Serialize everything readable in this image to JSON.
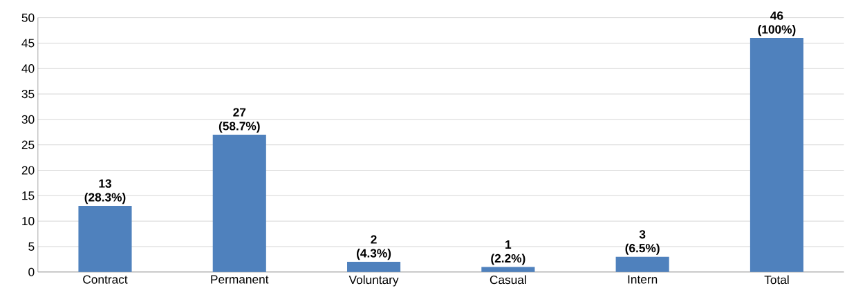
{
  "chart_data": {
    "type": "bar",
    "categories": [
      "Contract",
      "Permanent",
      "Voluntary",
      "Casual",
      "Intern",
      "Total"
    ],
    "values": [
      13,
      27,
      2,
      1,
      3,
      46
    ],
    "value_labels": [
      "13 (28.3%)",
      "27 (58.7%)",
      "2 (4.3%)",
      "1 (2.2%)",
      "3 (6.5%)",
      "46 (100%)"
    ],
    "color": "#4f81bd",
    "ylim": [
      0,
      50
    ],
    "yticks": [
      0,
      5,
      10,
      15,
      20,
      25,
      30,
      35,
      40,
      45,
      50
    ],
    "grid": "y"
  }
}
